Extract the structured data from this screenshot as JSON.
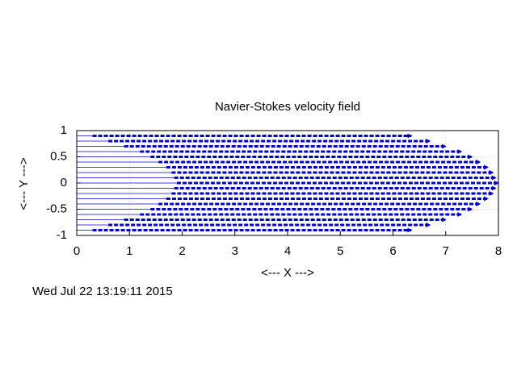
{
  "chart_data": {
    "type": "vector",
    "title": "Navier-Stokes velocity field",
    "xlabel": "<--- X --->",
    "ylabel": "<--- Y --->",
    "timestamp": "Wed Jul 22 13:19:11 2015",
    "color": "#0000cc",
    "grid": true,
    "xlim": [
      0,
      8
    ],
    "xticks": [
      0,
      1,
      2,
      3,
      4,
      5,
      6,
      7,
      8
    ],
    "ylim": [
      -1,
      1
    ],
    "yticks": [
      -1,
      -0.5,
      0,
      0.5,
      1
    ],
    "y": [
      0.9,
      0.8,
      0.7,
      0.6,
      0.5,
      0.4,
      0.3,
      0.2,
      0.1,
      0,
      -0.1,
      -0.2,
      -0.3,
      -0.4,
      -0.5,
      -0.6,
      -0.7,
      -0.8,
      -0.9
    ],
    "x_start": [
      0.3,
      0.6,
      0.9,
      1.2,
      1.4,
      1.55,
      1.7,
      1.8,
      1.85,
      1.9,
      1.85,
      1.8,
      1.7,
      1.55,
      1.4,
      1.2,
      0.9,
      0.6,
      0.3
    ],
    "x_end": [
      6.35,
      6.7,
      7.0,
      7.3,
      7.5,
      7.65,
      7.8,
      7.9,
      7.95,
      8,
      7.95,
      7.9,
      7.8,
      7.65,
      7.5,
      7.3,
      7.0,
      6.7,
      6.35
    ]
  }
}
